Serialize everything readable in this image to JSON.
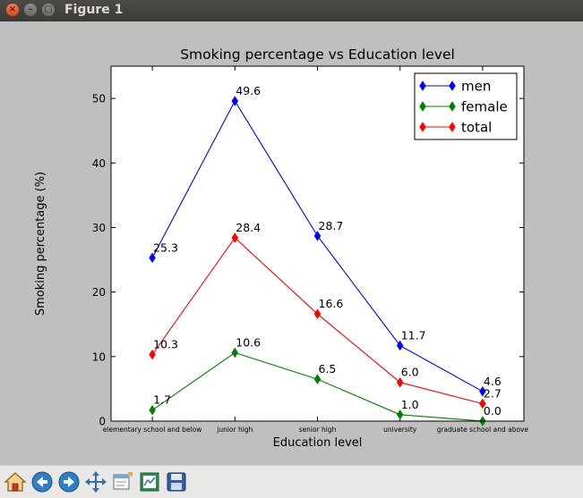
{
  "window": {
    "title": "Figure 1"
  },
  "toolbar": {
    "buttons": [
      {
        "name": "home-button",
        "icon": "home-icon"
      },
      {
        "name": "back-button",
        "icon": "arrow-left-icon"
      },
      {
        "name": "forward-button",
        "icon": "arrow-right-icon"
      },
      {
        "name": "pan-button",
        "icon": "move-icon"
      },
      {
        "name": "zoom-button",
        "icon": "zoom-rect-icon"
      },
      {
        "name": "configure-subplots-button",
        "icon": "subplots-icon"
      },
      {
        "name": "save-button",
        "icon": "floppy-icon"
      }
    ]
  },
  "chart_data": {
    "type": "line",
    "title": "Smoking percentage vs Education level",
    "xlabel": "Education level",
    "ylabel": "Smoking percentage (%)",
    "categories": [
      "elementary school and below",
      "junior high",
      "senior high",
      "university",
      "graduate school and above"
    ],
    "ylim": [
      0,
      55
    ],
    "yticks": [
      0,
      10,
      20,
      30,
      40,
      50
    ],
    "legend_position": "top-right",
    "series": [
      {
        "name": "men",
        "color": "#0000ff",
        "values": [
          25.3,
          49.6,
          28.7,
          11.7,
          4.6
        ],
        "labels": [
          "25.3",
          "49.6",
          "28.7",
          "11.7",
          "4.6"
        ]
      },
      {
        "name": "female",
        "color": "#008000",
        "values": [
          1.7,
          10.6,
          6.5,
          1.0,
          0.0
        ],
        "labels": [
          "1.7",
          "10.6",
          "6.5",
          "1.0",
          "0.0"
        ]
      },
      {
        "name": "total",
        "color": "#ff0000",
        "values": [
          10.3,
          28.4,
          16.6,
          6.0,
          2.7
        ],
        "labels": [
          "10.3",
          "28.4",
          "16.6",
          "6.0",
          "2.7"
        ]
      }
    ]
  }
}
